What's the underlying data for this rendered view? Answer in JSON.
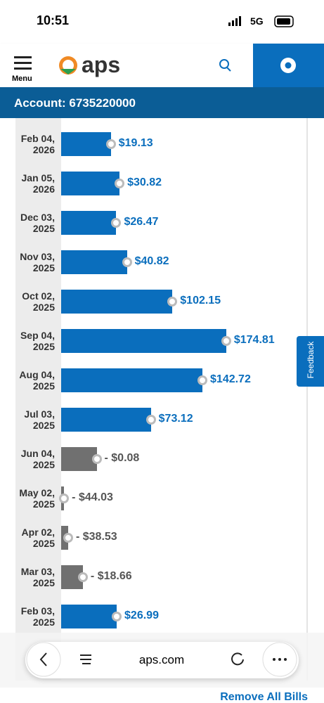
{
  "status_bar": {
    "time": "10:51",
    "network": "5G"
  },
  "header": {
    "menu": "Menu",
    "logo": "aps"
  },
  "account": "Account: 6735220000",
  "chart_data": {
    "type": "bar",
    "orientation": "horizontal",
    "categories": [
      "Feb 04, 2026",
      "Jan 05, 2026",
      "Dec 03, 2025",
      "Nov 03, 2025",
      "Oct 02, 2025",
      "Sep 04, 2025",
      "Aug 04, 2025",
      "Jul 03, 2025",
      "Jun 04, 2025",
      "May 02, 2025",
      "Apr 02, 2025",
      "Mar 03, 2025",
      "Feb 03, 2025"
    ],
    "values": [
      19.13,
      30.82,
      26.47,
      40.82,
      102.15,
      174.81,
      142.72,
      73.12,
      -0.08,
      -44.03,
      -38.53,
      -18.66,
      26.99
    ],
    "value_labels": [
      "$19.13",
      "$30.82",
      "$26.47",
      "$40.82",
      "$102.15",
      "$174.81",
      "$142.72",
      "$73.12",
      "- $0.08",
      "- $44.03",
      "- $38.53",
      "- $18.66",
      "$26.99"
    ],
    "colors": {
      "positive": "#0a6ebd",
      "negative": "#707070"
    },
    "xlim": [
      -48,
      285
    ]
  },
  "feedback": "Feedback",
  "browser": {
    "url": "aps.com"
  },
  "remove_all": "Remove All Bills"
}
